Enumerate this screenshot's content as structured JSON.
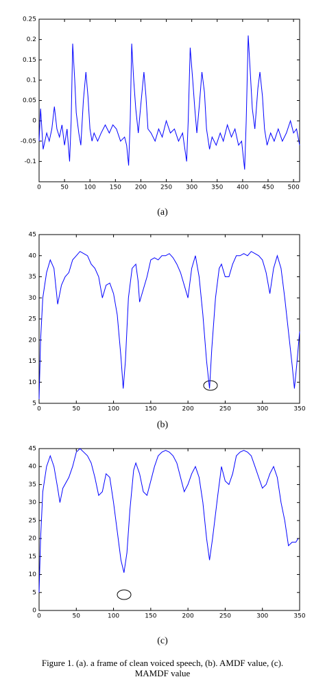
{
  "chart_data": [
    {
      "type": "line",
      "subtitle": "(a)",
      "xlim": [
        0,
        512
      ],
      "ylim": [
        -0.15,
        0.25
      ],
      "xticks": [
        0,
        50,
        100,
        150,
        200,
        250,
        300,
        350,
        400,
        450,
        500
      ],
      "yticks": [
        -0.1,
        -0.05,
        0,
        0.05,
        0.1,
        0.15,
        0.2,
        0.25
      ],
      "x": [
        0,
        3,
        8,
        15,
        20,
        25,
        30,
        35,
        40,
        45,
        50,
        55,
        60,
        63,
        66,
        70,
        73,
        78,
        82,
        87,
        92,
        96,
        100,
        104,
        108,
        115,
        122,
        130,
        138,
        145,
        152,
        160,
        168,
        172,
        176,
        179,
        182,
        186,
        190,
        195,
        200,
        206,
        210,
        214,
        220,
        228,
        235,
        242,
        250,
        258,
        266,
        274,
        282,
        290,
        293,
        297,
        302,
        306,
        310,
        315,
        320,
        325,
        329,
        335,
        340,
        348,
        356,
        362,
        370,
        378,
        385,
        392,
        398,
        404,
        407,
        411,
        415,
        419,
        424,
        430,
        434,
        439,
        443,
        448,
        455,
        462,
        470,
        478,
        486,
        494,
        500,
        506,
        512
      ],
      "series": [
        {
          "color": "#0000ff",
          "values": [
            -0.05,
            0.03,
            -0.07,
            -0.03,
            -0.05,
            -0.02,
            0.035,
            -0.02,
            -0.04,
            -0.01,
            -0.06,
            -0.02,
            -0.1,
            0.0,
            0.19,
            0.1,
            0.02,
            -0.03,
            -0.06,
            0.05,
            0.12,
            0.06,
            -0.02,
            -0.05,
            -0.03,
            -0.05,
            -0.03,
            -0.01,
            -0.03,
            -0.01,
            -0.02,
            -0.05,
            -0.04,
            -0.06,
            -0.11,
            0.0,
            0.19,
            0.1,
            0.03,
            -0.03,
            0.04,
            0.12,
            0.06,
            -0.02,
            -0.03,
            -0.05,
            -0.02,
            -0.04,
            0.0,
            -0.03,
            -0.02,
            -0.05,
            -0.03,
            -0.1,
            0.0,
            0.18,
            0.1,
            0.03,
            -0.03,
            0.04,
            0.12,
            0.07,
            -0.02,
            -0.07,
            -0.04,
            -0.06,
            -0.03,
            -0.05,
            -0.01,
            -0.04,
            -0.02,
            -0.06,
            -0.05,
            -0.12,
            0.0,
            0.21,
            0.12,
            0.03,
            -0.02,
            0.08,
            0.12,
            0.06,
            -0.02,
            -0.06,
            -0.03,
            -0.05,
            -0.02,
            -0.05,
            -0.03,
            0.0,
            -0.03,
            -0.02,
            -0.06
          ]
        }
      ]
    },
    {
      "type": "line",
      "subtitle": "(b)",
      "xlim": [
        0,
        350
      ],
      "ylim": [
        5,
        45
      ],
      "xticks": [
        0,
        50,
        100,
        150,
        200,
        250,
        300,
        350
      ],
      "yticks": [
        5,
        10,
        15,
        20,
        25,
        30,
        35,
        40,
        45
      ],
      "x": [
        0,
        2,
        5,
        10,
        15,
        20,
        25,
        30,
        35,
        40,
        45,
        50,
        55,
        60,
        65,
        70,
        75,
        80,
        85,
        90,
        95,
        100,
        105,
        110,
        113,
        116,
        120,
        125,
        130,
        133,
        135,
        140,
        145,
        150,
        155,
        160,
        165,
        170,
        175,
        180,
        185,
        190,
        195,
        200,
        205,
        210,
        215,
        220,
        225,
        229,
        232,
        237,
        242,
        245,
        250,
        255,
        260,
        265,
        270,
        275,
        280,
        285,
        290,
        295,
        300,
        305,
        310,
        315,
        320,
        325,
        330,
        335,
        340,
        343,
        346,
        350
      ],
      "series": [
        {
          "color": "#0000ff",
          "values": [
            6,
            20,
            30,
            36,
            39,
            37,
            28.5,
            33,
            35,
            36,
            39,
            40,
            41,
            40.5,
            40,
            38,
            37,
            35,
            30,
            33,
            33.5,
            31,
            26,
            16,
            8.5,
            15,
            30,
            37,
            38,
            34,
            29,
            32,
            35,
            39,
            39.5,
            39,
            40,
            40,
            40.5,
            39.5,
            38,
            36,
            33,
            30,
            37,
            40,
            35,
            26,
            15,
            8.5,
            18,
            30,
            37,
            38,
            35,
            35,
            38,
            40,
            40,
            40.5,
            40,
            41,
            40.5,
            40,
            39,
            36,
            31,
            37,
            40,
            37,
            30,
            22,
            14,
            8.5,
            14,
            22
          ]
        }
      ]
    },
    {
      "type": "line",
      "subtitle": "(c)",
      "xlim": [
        0,
        350
      ],
      "ylim": [
        0,
        45
      ],
      "xticks": [
        0,
        50,
        100,
        150,
        200,
        250,
        300,
        350
      ],
      "yticks": [
        0,
        5,
        10,
        15,
        20,
        25,
        30,
        35,
        40,
        45
      ],
      "x": [
        0,
        2,
        5,
        10,
        15,
        20,
        25,
        28,
        32,
        40,
        45,
        50,
        55,
        60,
        65,
        70,
        75,
        80,
        85,
        90,
        95,
        100,
        105,
        110,
        114,
        118,
        122,
        127,
        130,
        135,
        140,
        145,
        150,
        155,
        160,
        165,
        170,
        175,
        180,
        185,
        190,
        195,
        200,
        205,
        210,
        215,
        220,
        225,
        229,
        233,
        240,
        245,
        250,
        255,
        260,
        265,
        270,
        275,
        280,
        285,
        290,
        295,
        300,
        305,
        310,
        315,
        320,
        325,
        330,
        335,
        340,
        345,
        348
      ],
      "series": [
        {
          "color": "#0000ff",
          "values": [
            5,
            20,
            33,
            40,
            43,
            40,
            34,
            30,
            34,
            37,
            40,
            44,
            45,
            44,
            43,
            41,
            37,
            32,
            33,
            38,
            37,
            30,
            22,
            14,
            10.5,
            16,
            28,
            39,
            41,
            38,
            33,
            32,
            36,
            40,
            43,
            44,
            44.5,
            44,
            43,
            41,
            37,
            33,
            35,
            38,
            40,
            37,
            30,
            20,
            14,
            20,
            32,
            40,
            36,
            35,
            38,
            43,
            44,
            44.5,
            44,
            43,
            40,
            37,
            34,
            35,
            38,
            40,
            37,
            30,
            25,
            18,
            19,
            19,
            20
          ]
        }
      ]
    }
  ],
  "caption": [
    "Figure 1.    (a). a frame of clean voiced speech, (b). AMDF value, (c).",
    "MAMDF value"
  ]
}
